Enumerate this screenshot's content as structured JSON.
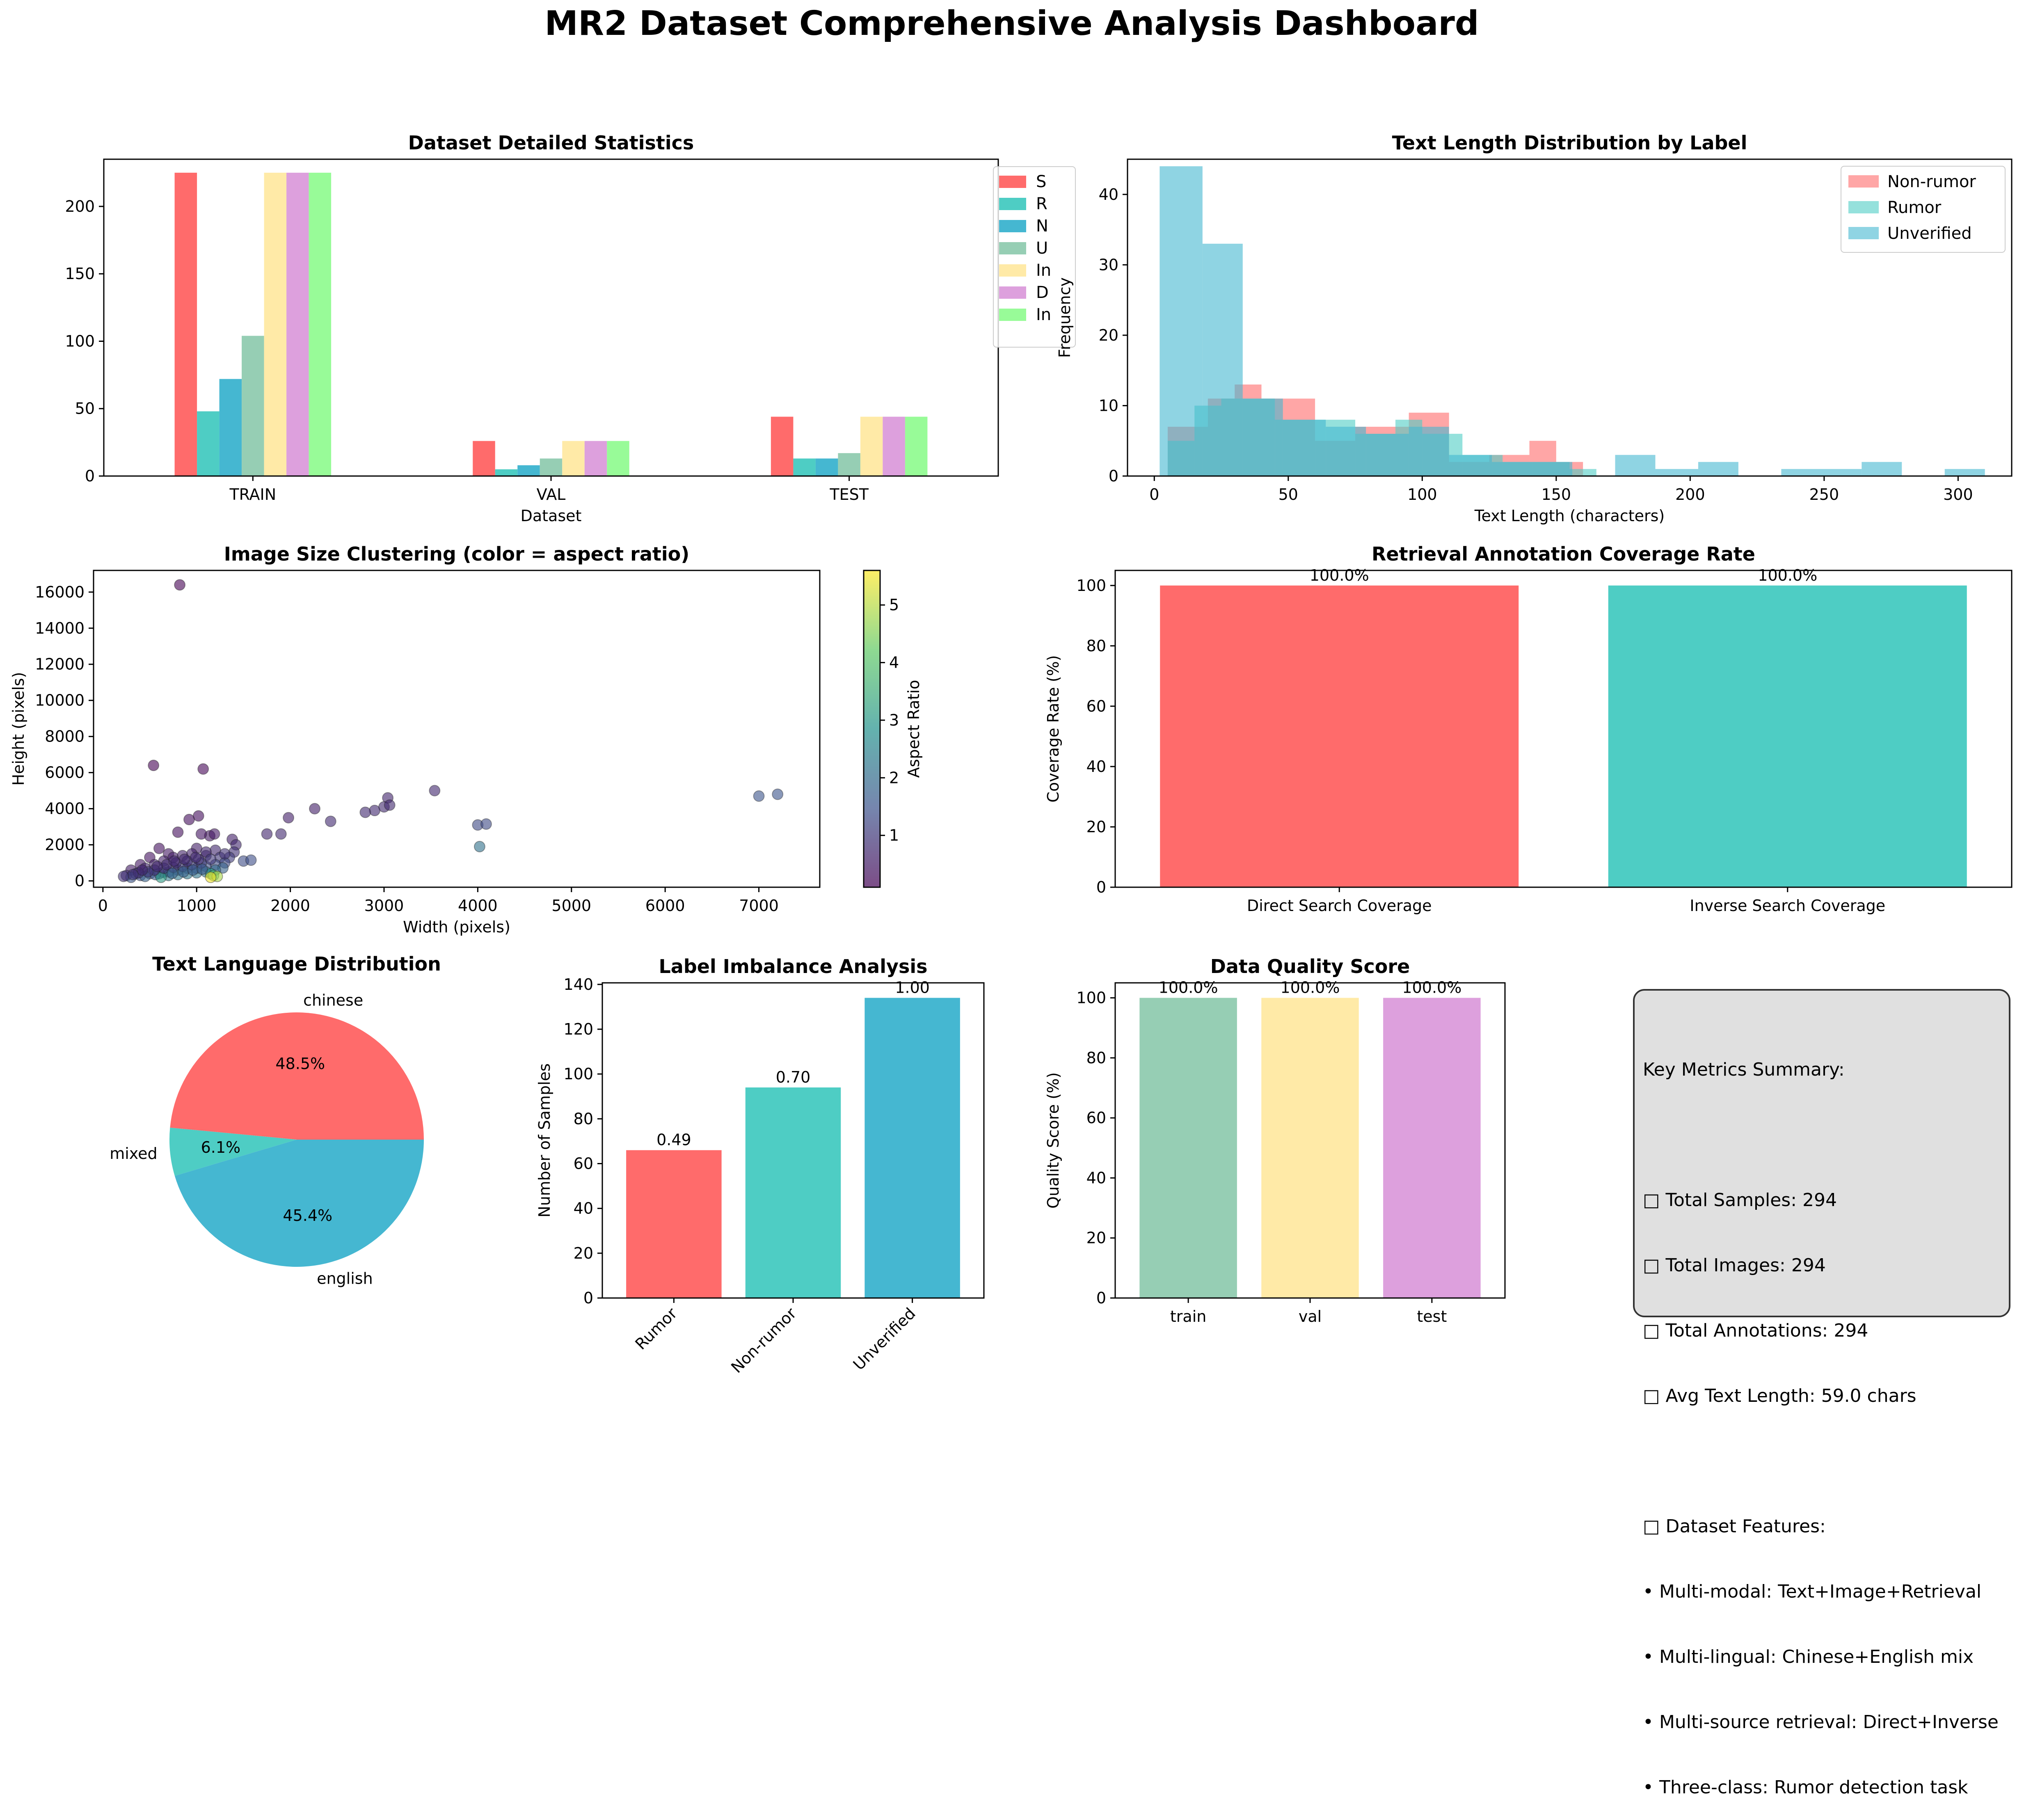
{
  "page_title": "MR2 Dataset Comprehensive Analysis Dashboard",
  "chart_data": [
    {
      "type": "bar",
      "title": "Dataset Detailed Statistics",
      "xlabel": "Dataset",
      "ylabel": "",
      "categories": [
        "TRAIN",
        "VAL",
        "TEST"
      ],
      "yticks": [
        0,
        50,
        100,
        150,
        200
      ],
      "ylim": [
        0,
        235
      ],
      "legend_position": "upper-right (overlapping, clipped)",
      "legend_labels": [
        "S",
        "R",
        "N",
        "U",
        "In",
        "D",
        "In"
      ],
      "series": [
        {
          "color": "#FF6B6B",
          "values": [
            225,
            26,
            44
          ]
        },
        {
          "color": "#4ECDC4",
          "values": [
            48,
            5,
            13
          ]
        },
        {
          "color": "#45B7D1",
          "values": [
            72,
            8,
            13
          ]
        },
        {
          "color": "#96CEB4",
          "values": [
            104,
            13,
            17
          ]
        },
        {
          "color": "#FFEAA7",
          "values": [
            225,
            26,
            44
          ]
        },
        {
          "color": "#DDA0DD",
          "values": [
            225,
            26,
            44
          ]
        },
        {
          "color": "#98FB98",
          "values": [
            225,
            26,
            44
          ]
        }
      ]
    },
    {
      "type": "histogram",
      "title": "Text Length Distribution by Label",
      "xlabel": "Text Length (characters)",
      "ylabel": "Frequency",
      "xlim": [
        -10,
        320
      ],
      "ylim": [
        0,
        45
      ],
      "xticks": [
        0,
        50,
        100,
        150,
        200,
        250,
        300
      ],
      "yticks": [
        0,
        10,
        20,
        30,
        40
      ],
      "legend_position": "top-right",
      "series": [
        {
          "name": "Non-rumor",
          "color": "#FF6B6B",
          "bins": [
            [
              5,
              20,
              7
            ],
            [
              20,
              30,
              11
            ],
            [
              30,
              40,
              13
            ],
            [
              40,
              60,
              11
            ],
            [
              60,
              75,
              5
            ],
            [
              75,
              95,
              7
            ],
            [
              95,
              110,
              9
            ],
            [
              110,
              125,
              2
            ],
            [
              125,
              140,
              3
            ],
            [
              140,
              150,
              5
            ],
            [
              150,
              160,
              2
            ]
          ]
        },
        {
          "name": "Rumor",
          "color": "#4ECDC4",
          "bins": [
            [
              5,
              15,
              5
            ],
            [
              15,
              25,
              10
            ],
            [
              25,
              45,
              11
            ],
            [
              45,
              60,
              8
            ],
            [
              60,
              75,
              8
            ],
            [
              75,
              90,
              6
            ],
            [
              90,
              100,
              8
            ],
            [
              100,
              115,
              6
            ],
            [
              115,
              130,
              3
            ],
            [
              130,
              155,
              2
            ],
            [
              155,
              165,
              1
            ]
          ]
        },
        {
          "name": "Unverified",
          "color": "#45B7D1",
          "bins": [
            [
              2,
              18,
              44
            ],
            [
              18,
              33,
              33
            ],
            [
              33,
              48,
              11
            ],
            [
              48,
              64,
              8
            ],
            [
              64,
              79,
              7
            ],
            [
              79,
              95,
              6
            ],
            [
              95,
              110,
              7
            ],
            [
              110,
              126,
              3
            ],
            [
              126,
              141,
              2
            ],
            [
              141,
              156,
              2
            ],
            [
              172,
              187,
              3
            ],
            [
              187,
              203,
              1
            ],
            [
              203,
              218,
              2
            ],
            [
              234,
              264,
              1
            ],
            [
              264,
              279,
              2
            ],
            [
              295,
              310,
              1
            ]
          ]
        }
      ]
    },
    {
      "type": "scatter",
      "title": "Image Size Clustering (color = aspect ratio)",
      "xlabel": "Width (pixels)",
      "ylabel": "Height (pixels)",
      "xlim": [
        -100,
        7650
      ],
      "ylim": [
        -350,
        17200
      ],
      "xticks": [
        0,
        1000,
        2000,
        3000,
        4000,
        5000,
        6000,
        7000
      ],
      "yticks": [
        0,
        2000,
        4000,
        6000,
        8000,
        10000,
        12000,
        14000,
        16000
      ],
      "colorbar_label": "Aspect Ratio",
      "colorbar_range": [
        0.1,
        5.6
      ],
      "colorbar_ticks": [
        1,
        2,
        3,
        4,
        5
      ],
      "points": [
        [
          820,
          16400,
          0.05
        ],
        [
          540,
          6400,
          0.08
        ],
        [
          1070,
          6200,
          0.17
        ],
        [
          3540,
          5000,
          0.7
        ],
        [
          3040,
          4600,
          0.66
        ],
        [
          7200,
          4800,
          1.5
        ],
        [
          7000,
          4700,
          1.49
        ],
        [
          2260,
          4000,
          0.56
        ],
        [
          2900,
          3900,
          0.74
        ],
        [
          2800,
          3800,
          0.74
        ],
        [
          3000,
          4100,
          0.73
        ],
        [
          3060,
          4200,
          0.73
        ],
        [
          4000,
          3100,
          1.29
        ],
        [
          4090,
          3150,
          1.3
        ],
        [
          4020,
          1900,
          2.1
        ],
        [
          2430,
          3300,
          0.74
        ],
        [
          1980,
          3500,
          0.57
        ],
        [
          1750,
          2600,
          0.67
        ],
        [
          1900,
          2600,
          0.73
        ],
        [
          1020,
          3600,
          0.28
        ],
        [
          920,
          3400,
          0.27
        ],
        [
          800,
          2700,
          0.3
        ],
        [
          1140,
          2500,
          0.46
        ],
        [
          1190,
          2600,
          0.46
        ],
        [
          1050,
          2600,
          0.4
        ],
        [
          1380,
          2300,
          0.6
        ],
        [
          1420,
          2000,
          0.71
        ],
        [
          1400,
          1600,
          0.88
        ],
        [
          1200,
          1700,
          0.71
        ],
        [
          1000,
          1800,
          0.56
        ],
        [
          600,
          1800,
          0.33
        ],
        [
          700,
          1500,
          0.47
        ],
        [
          500,
          1300,
          0.38
        ],
        [
          400,
          900,
          0.44
        ],
        [
          300,
          600,
          0.5
        ],
        [
          250,
          300,
          0.83
        ],
        [
          350,
          400,
          0.88
        ],
        [
          450,
          700,
          0.64
        ],
        [
          550,
          900,
          0.61
        ],
        [
          650,
          1100,
          0.59
        ],
        [
          750,
          1300,
          0.58
        ],
        [
          850,
          1400,
          0.61
        ],
        [
          950,
          1500,
          0.63
        ],
        [
          1100,
          1400,
          0.79
        ],
        [
          1250,
          1300,
          0.96
        ],
        [
          1350,
          1300,
          1.04
        ],
        [
          1500,
          1100,
          1.36
        ],
        [
          1580,
          1150,
          1.37
        ],
        [
          1300,
          1000,
          1.3
        ],
        [
          1200,
          900,
          1.33
        ],
        [
          1100,
          800,
          1.38
        ],
        [
          1000,
          700,
          1.43
        ],
        [
          900,
          700,
          1.29
        ],
        [
          800,
          600,
          1.33
        ],
        [
          700,
          500,
          1.4
        ],
        [
          640,
          480,
          1.33
        ],
        [
          600,
          400,
          1.5
        ],
        [
          500,
          400,
          1.25
        ],
        [
          400,
          300,
          1.33
        ],
        [
          300,
          200,
          1.5
        ],
        [
          1280,
          720,
          1.78
        ],
        [
          1200,
          600,
          2.0
        ],
        [
          1100,
          500,
          2.2
        ],
        [
          1000,
          450,
          2.22
        ],
        [
          1150,
          400,
          2.88
        ],
        [
          1180,
          300,
          3.93
        ],
        [
          1220,
          250,
          4.88
        ],
        [
          1150,
          200,
          5.5
        ],
        [
          900,
          400,
          2.25
        ],
        [
          800,
          350,
          2.29
        ],
        [
          700,
          300,
          2.33
        ],
        [
          560,
          350,
          1.6
        ],
        [
          620,
          200,
          3.1
        ],
        [
          450,
          250,
          1.8
        ],
        [
          1050,
          1000,
          1.05
        ],
        [
          950,
          900,
          1.06
        ],
        [
          850,
          800,
          1.06
        ],
        [
          750,
          750,
          1.0
        ],
        [
          650,
          700,
          0.93
        ],
        [
          550,
          600,
          0.92
        ],
        [
          480,
          500,
          0.96
        ],
        [
          380,
          450,
          0.84
        ],
        [
          1020,
          1200,
          0.85
        ],
        [
          900,
          1100,
          0.82
        ],
        [
          780,
          1000,
          0.78
        ],
        [
          680,
          900,
          0.76
        ],
        [
          580,
          800,
          0.73
        ],
        [
          420,
          600,
          0.7
        ],
        [
          320,
          350,
          0.91
        ],
        [
          220,
          250,
          0.88
        ],
        [
          1100,
          1600,
          0.69
        ],
        [
          990,
          1300,
          0.76
        ],
        [
          870,
          1200,
          0.73
        ],
        [
          760,
          1100,
          0.69
        ],
        [
          1300,
          1500,
          0.87
        ],
        [
          1150,
          1200,
          0.96
        ],
        [
          860,
          500,
          1.72
        ],
        [
          960,
          600,
          1.6
        ],
        [
          1060,
          650,
          1.63
        ],
        [
          740,
          420,
          1.76
        ]
      ]
    },
    {
      "type": "bar",
      "title": "Retrieval Annotation Coverage Rate",
      "xlabel": "",
      "ylabel": "Coverage Rate (%)",
      "categories": [
        "Direct Search Coverage",
        "Inverse Search Coverage"
      ],
      "values": [
        100.0,
        100.0
      ],
      "data_labels": [
        "100.0%",
        "100.0%"
      ],
      "colors": [
        "#FF6B6B",
        "#4ECDC4"
      ],
      "ylim": [
        0,
        105
      ],
      "yticks": [
        0,
        20,
        40,
        60,
        80,
        100
      ]
    },
    {
      "type": "pie",
      "title": "Text Language Distribution",
      "labels": [
        "chinese",
        "mixed",
        "english"
      ],
      "values": [
        48.5,
        6.1,
        45.4
      ],
      "pct_labels": [
        "48.5%",
        "6.1%",
        "45.4%"
      ],
      "colors": [
        "#FF6B6B",
        "#4ECDC4",
        "#45B7D1"
      ]
    },
    {
      "type": "bar",
      "title": "Label Imbalance Analysis",
      "xlabel": "",
      "ylabel": "Number of Samples",
      "categories": [
        "Rumor",
        "Non-rumor",
        "Unverified"
      ],
      "values": [
        66,
        94,
        134
      ],
      "data_labels": [
        "0.49",
        "0.70",
        "1.00"
      ],
      "colors": [
        "#FF6B6B",
        "#4ECDC4",
        "#45B7D1"
      ],
      "ylim": [
        0,
        140.7
      ],
      "yticks": [
        0,
        20,
        40,
        60,
        80,
        100,
        120,
        140
      ]
    },
    {
      "type": "bar",
      "title": "Data Quality Score",
      "xlabel": "",
      "ylabel": "Quality Score (%)",
      "categories": [
        "train",
        "val",
        "test"
      ],
      "values": [
        100.0,
        100.0,
        100.0
      ],
      "data_labels": [
        "100.0%",
        "100.0%",
        "100.0%"
      ],
      "colors": [
        "#96CEB4",
        "#FFEAA7",
        "#DDA0DD"
      ],
      "ylim": [
        0,
        105
      ],
      "yticks": [
        0,
        20,
        40,
        60,
        80,
        100
      ]
    }
  ],
  "summary": {
    "lines": [
      "Key Metrics Summary:",
      "",
      "□ Total Samples: 294",
      "□ Total Images: 294",
      "□ Total Annotations: 294",
      "□ Avg Text Length: 59.0 chars",
      "",
      "□ Dataset Features:",
      "• Multi-modal: Text+Image+Retrieval",
      "• Multi-lingual: Chinese+English mix",
      "• Multi-source retrieval: Direct+Inverse",
      "• Three-class: Rumor detection task"
    ]
  }
}
